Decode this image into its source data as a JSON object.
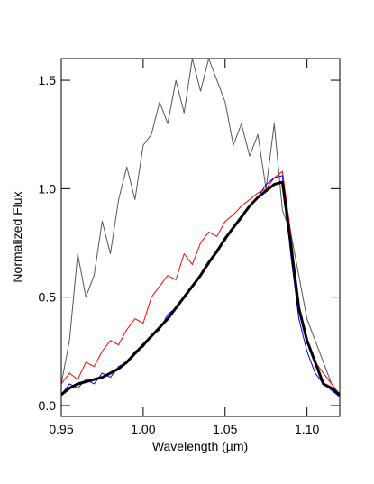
{
  "chart_data": {
    "type": "line",
    "x_label": "Wavelength (µm)",
    "y_label": "Normalized Flux",
    "x": [
      0.95,
      0.955,
      0.96,
      0.965,
      0.97,
      0.975,
      0.98,
      0.985,
      0.99,
      0.995,
      1.0,
      1.005,
      1.01,
      1.015,
      1.02,
      1.025,
      1.03,
      1.035,
      1.04,
      1.045,
      1.05,
      1.055,
      1.06,
      1.065,
      1.07,
      1.075,
      1.08,
      1.085,
      1.09,
      1.095,
      1.1,
      1.105,
      1.11,
      1.115,
      1.12
    ],
    "series": [
      {
        "color": "#555555",
        "values": [
          0.1,
          0.3,
          0.7,
          0.5,
          0.6,
          0.85,
          0.7,
          0.95,
          1.1,
          0.95,
          1.2,
          1.25,
          1.4,
          1.3,
          1.5,
          1.35,
          1.6,
          1.45,
          1.6,
          1.5,
          1.4,
          1.2,
          1.3,
          1.15,
          1.25,
          1.0,
          1.3,
          0.9,
          0.8,
          0.6,
          0.4,
          0.3,
          0.2,
          0.1,
          0.05
        ]
      },
      {
        "color": "#ff0000",
        "values": [
          0.1,
          0.15,
          0.12,
          0.2,
          0.18,
          0.25,
          0.3,
          0.28,
          0.35,
          0.4,
          0.38,
          0.5,
          0.55,
          0.6,
          0.58,
          0.7,
          0.65,
          0.75,
          0.8,
          0.78,
          0.85,
          0.88,
          0.92,
          0.95,
          0.98,
          1.0,
          1.05,
          1.08,
          0.8,
          0.45,
          0.3,
          0.2,
          0.15,
          0.1,
          0.05
        ]
      },
      {
        "color": "#0000ff",
        "values": [
          0.05,
          0.1,
          0.08,
          0.12,
          0.1,
          0.15,
          0.13,
          0.18,
          0.2,
          0.25,
          0.27,
          0.32,
          0.35,
          0.42,
          0.45,
          0.5,
          0.55,
          0.6,
          0.65,
          0.72,
          0.76,
          0.82,
          0.86,
          0.92,
          0.96,
          1.02,
          1.05,
          1.06,
          0.7,
          0.4,
          0.25,
          0.15,
          0.1,
          0.07,
          0.04
        ]
      },
      {
        "color": "#000000",
        "values": [
          0.05,
          0.08,
          0.1,
          0.11,
          0.12,
          0.13,
          0.15,
          0.17,
          0.2,
          0.24,
          0.28,
          0.32,
          0.36,
          0.4,
          0.45,
          0.5,
          0.55,
          0.6,
          0.66,
          0.71,
          0.77,
          0.82,
          0.87,
          0.92,
          0.96,
          0.99,
          1.02,
          1.03,
          0.75,
          0.45,
          0.3,
          0.2,
          0.1,
          0.08,
          0.05
        ]
      }
    ],
    "xlim": [
      0.95,
      1.12
    ],
    "xticks": [
      0.95,
      {
        "value": 1.0,
        "label": "1.00"
      },
      1.05,
      {
        "value": 1.1,
        "label": "1.10"
      }
    ],
    "ylim": [
      -0.05,
      1.6
    ],
    "yticks": [
      {
        "value": 0,
        "label": "0.0"
      },
      0.5,
      {
        "value": 1,
        "label": "1.0"
      },
      1.5
    ]
  }
}
